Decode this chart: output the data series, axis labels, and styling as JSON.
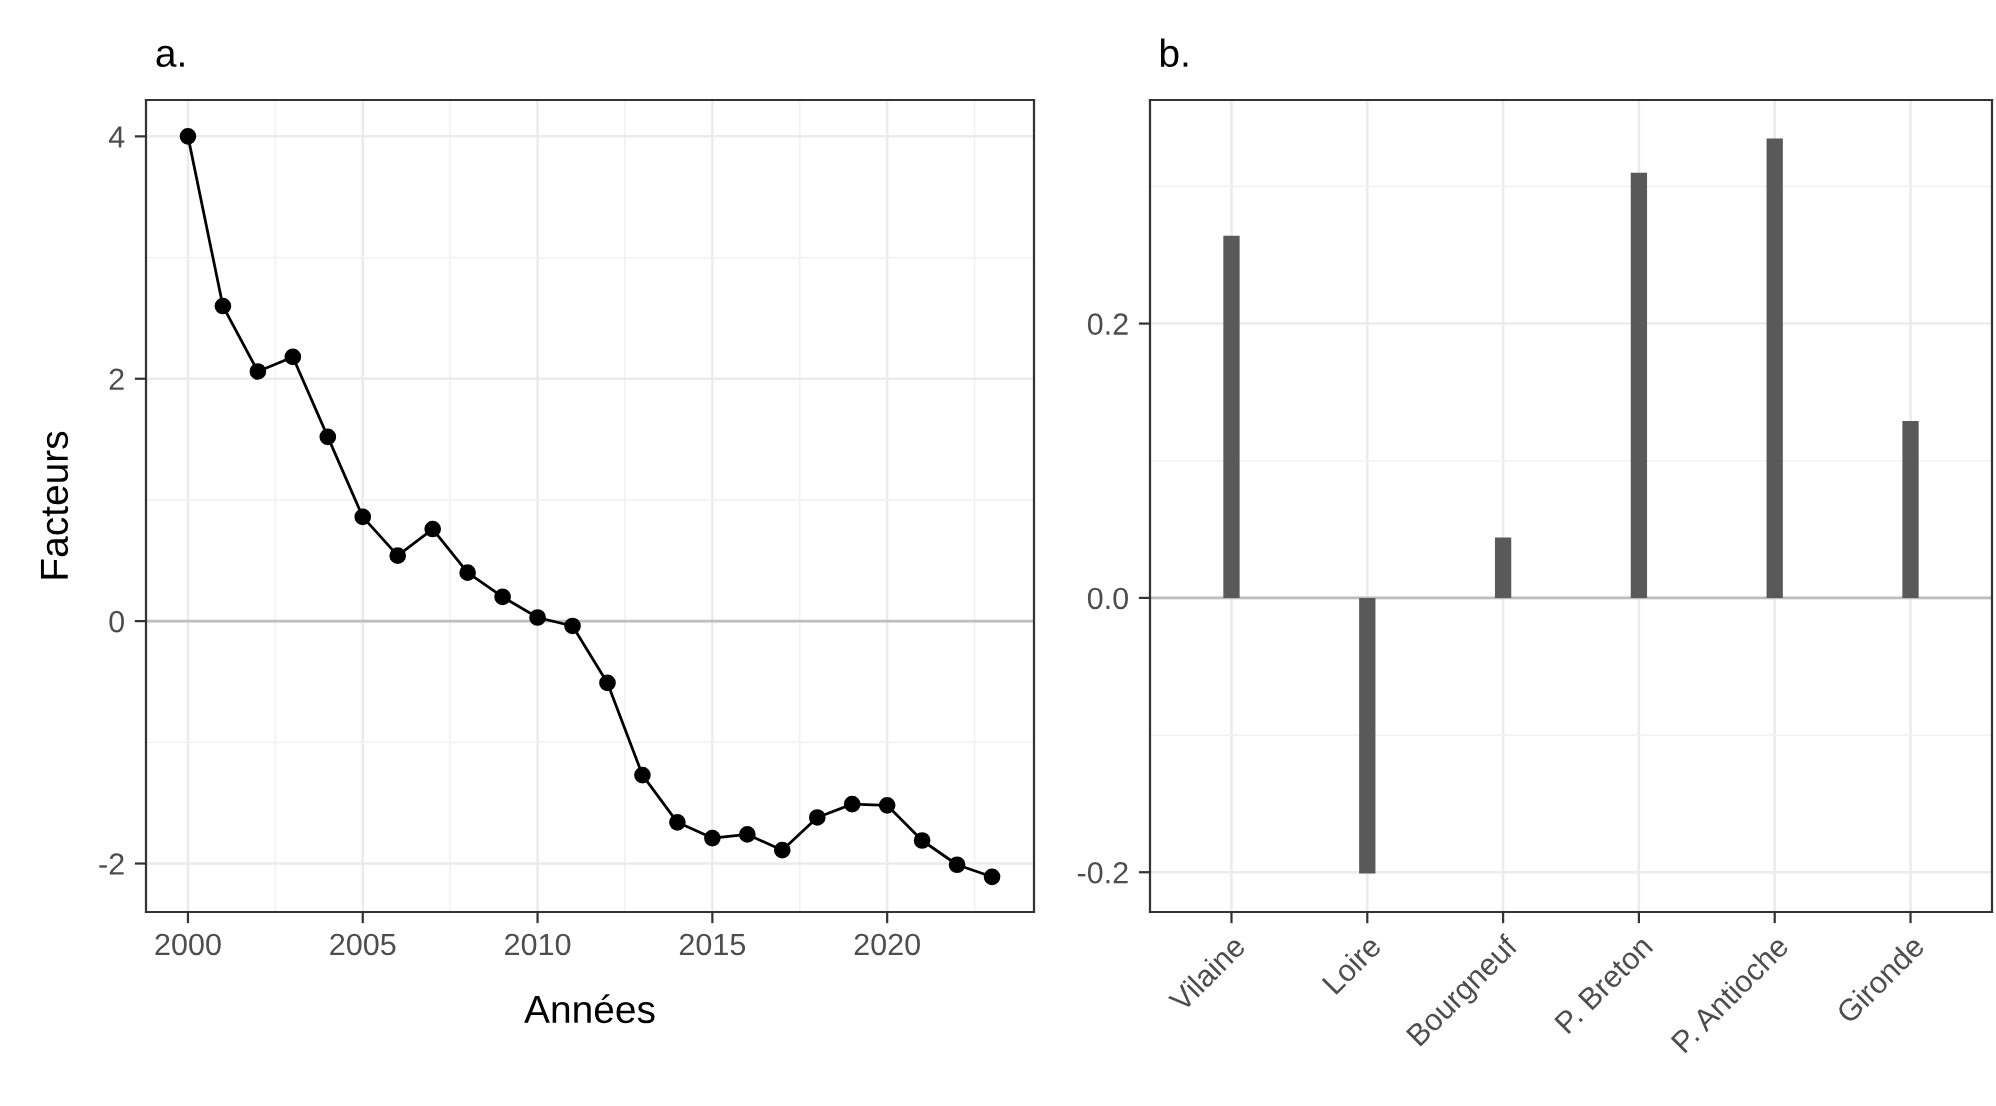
{
  "chart_data": [
    {
      "type": "line",
      "title": "a.",
      "xlabel": "Années",
      "ylabel": "Facteurs",
      "x": [
        2000,
        2001,
        2002,
        2003,
        2004,
        2005,
        2006,
        2007,
        2008,
        2009,
        2010,
        2011,
        2012,
        2013,
        2014,
        2015,
        2016,
        2017,
        2018,
        2019,
        2020,
        2021,
        2022,
        2023
      ],
      "series": [
        {
          "color": "#000000",
          "values": [
            4.0,
            2.6,
            2.06,
            2.18,
            1.52,
            0.86,
            0.54,
            0.76,
            0.4,
            0.2,
            0.03,
            -0.04,
            -0.51,
            -1.27,
            -1.66,
            -1.79,
            -1.76,
            -1.89,
            -1.62,
            -1.51,
            -1.52,
            -1.81,
            -2.01,
            -2.11
          ]
        }
      ],
      "marker": "circle",
      "line_style": "solid",
      "xlim": [
        1998.8,
        2024.2
      ],
      "ylim": [
        -2.4,
        4.3
      ],
      "xticks": [
        2000,
        2005,
        2010,
        2015,
        2020
      ],
      "yticks": [
        -2,
        0,
        2,
        4
      ],
      "ref_lines": [
        {
          "axis": "y",
          "value": 0,
          "color": "#bebebe"
        }
      ],
      "grid": true,
      "legend": false
    },
    {
      "type": "bar",
      "title": "b.",
      "categories": [
        "Vilaine",
        "Loire",
        "Bourgneuf",
        "P. Breton",
        "P. Antioche",
        "Gironde"
      ],
      "series": [
        {
          "color": "#595959",
          "values": [
            0.264,
            -0.201,
            0.044,
            0.31,
            0.335,
            0.129
          ]
        }
      ],
      "ylim": [
        -0.229,
        0.363
      ],
      "yticks": [
        {
          "value": -0.2,
          "label": "-0.2"
        },
        {
          "value": 0.0,
          "label": "0.0"
        },
        {
          "value": 0.2,
          "label": "0.2"
        }
      ],
      "ref_lines": [
        {
          "axis": "y",
          "value": 0,
          "color": "#bebebe"
        }
      ],
      "grid": true,
      "legend": false
    }
  ]
}
